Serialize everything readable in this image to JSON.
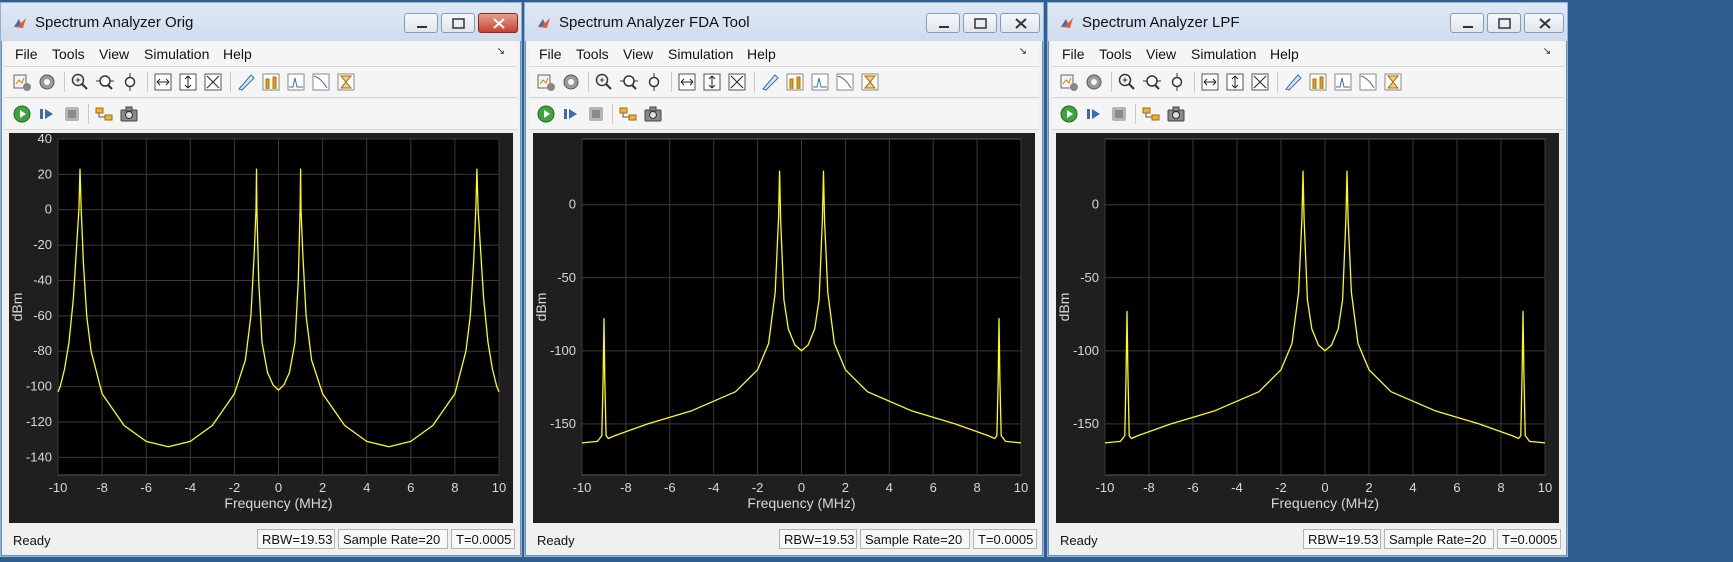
{
  "windows": [
    {
      "title": "Spectrum Analyzer Orig",
      "active": true,
      "menu": [
        "File",
        "Tools",
        "View",
        "Simulation",
        "Help"
      ],
      "status": {
        "state": "Ready",
        "rbw": "RBW=19.53",
        "sample_rate": "Sample Rate=20",
        "time": "T=0.0005"
      },
      "chart_data": {
        "type": "line",
        "xlabel": "Frequency (MHz)",
        "ylabel": "dBm",
        "xlim": [
          -10,
          10
        ],
        "ylim": [
          -150,
          40
        ],
        "xticks": [
          "-10",
          "-8",
          "-6",
          "-4",
          "-2",
          "0",
          "2",
          "4",
          "6",
          "8",
          "10"
        ],
        "yticks": [
          "40",
          "20",
          "0",
          "-20",
          "-40",
          "-60",
          "-80",
          "-100",
          "-120",
          "-140"
        ],
        "ytick_values": [
          40,
          20,
          0,
          -20,
          -40,
          -60,
          -80,
          -100,
          -120,
          -140
        ],
        "grid": true,
        "color": "#ffff00",
        "series": [
          {
            "x": [
              -10,
              -9.9,
              -9.7,
              -9.5,
              -9.3,
              -9.15,
              -9.05,
              -9.0,
              -8.95,
              -8.85,
              -8.7,
              -8.5,
              -8,
              -7,
              -6,
              -5,
              -4,
              -3,
              -2,
              -1.5,
              -1.25,
              -1.1,
              -1.02,
              -1.0,
              -0.98,
              -0.9,
              -0.75,
              -0.5,
              -0.25,
              0,
              0.25,
              0.5,
              0.75,
              0.9,
              0.98,
              1.0,
              1.02,
              1.1,
              1.25,
              1.5,
              2,
              3,
              4,
              5,
              6,
              7,
              8,
              8.5,
              8.7,
              8.85,
              8.95,
              9.0,
              9.05,
              9.15,
              9.3,
              9.5,
              9.7,
              9.9,
              10
            ],
            "y": [
              -103,
              -100,
              -90,
              -75,
              -50,
              -20,
              0,
              23,
              0,
              -30,
              -60,
              -80,
              -104,
              -122,
              -131,
              -134,
              -131,
              -122,
              -104,
              -85,
              -60,
              -25,
              0,
              23,
              0,
              -40,
              -75,
              -92,
              -99,
              -102,
              -99,
              -92,
              -75,
              -40,
              0,
              23,
              0,
              -25,
              -60,
              -85,
              -104,
              -122,
              -131,
              -134,
              -131,
              -122,
              -104,
              -80,
              -60,
              -30,
              0,
              23,
              0,
              -20,
              -50,
              -75,
              -90,
              -100,
              -103
            ]
          }
        ]
      }
    },
    {
      "title": "Spectrum Analyzer FDA Tool",
      "active": false,
      "menu": [
        "File",
        "Tools",
        "View",
        "Simulation",
        "Help"
      ],
      "status": {
        "state": "Ready",
        "rbw": "RBW=19.53",
        "sample_rate": "Sample Rate=20",
        "time": "T=0.0005"
      },
      "chart_data": {
        "type": "line",
        "xlabel": "Frequency (MHz)",
        "ylabel": "dBm",
        "xlim": [
          -10,
          10
        ],
        "ylim": [
          -185,
          45
        ],
        "xticks": [
          "-10",
          "-8",
          "-6",
          "-4",
          "-2",
          "0",
          "2",
          "4",
          "6",
          "8",
          "10"
        ],
        "yticks": [
          "0",
          "-50",
          "-100",
          "-150"
        ],
        "ytick_values": [
          0,
          -50,
          -100,
          -150
        ],
        "grid": true,
        "color": "#ffff00",
        "series": [
          {
            "x": [
              -10,
              -9.3,
              -9.1,
              -9.04,
              -9.0,
              -8.96,
              -8.9,
              -8.8,
              -8.5,
              -7,
              -5,
              -3,
              -2,
              -1.5,
              -1.2,
              -1.05,
              -1.0,
              -0.95,
              -0.8,
              -0.6,
              -0.3,
              0,
              0.3,
              0.6,
              0.8,
              0.95,
              1.0,
              1.05,
              1.2,
              1.5,
              2,
              3,
              5,
              7,
              8.5,
              8.8,
              8.9,
              8.96,
              9.0,
              9.04,
              9.1,
              9.3,
              10
            ],
            "y": [
              -163,
              -162,
              -158,
              -120,
              -78,
              -120,
              -158,
              -160,
              -158,
              -150,
              -141,
              -128,
              -113,
              -95,
              -60,
              -10,
              23,
              -10,
              -65,
              -85,
              -96,
              -100,
              -96,
              -85,
              -65,
              -10,
              23,
              -10,
              -60,
              -95,
              -113,
              -128,
              -141,
              -150,
              -158,
              -160,
              -158,
              -120,
              -78,
              -120,
              -158,
              -162,
              -163
            ]
          }
        ]
      }
    },
    {
      "title": "Spectrum Analyzer LPF",
      "active": false,
      "menu": [
        "File",
        "Tools",
        "View",
        "Simulation",
        "Help"
      ],
      "status": {
        "state": "Ready",
        "rbw": "RBW=19.53",
        "sample_rate": "Sample Rate=20",
        "time": "T=0.0005"
      },
      "chart_data": {
        "type": "line",
        "xlabel": "Frequency (MHz)",
        "ylabel": "dBm",
        "xlim": [
          -10,
          10
        ],
        "ylim": [
          -185,
          45
        ],
        "xticks": [
          "-10",
          "-8",
          "-6",
          "-4",
          "-2",
          "0",
          "2",
          "4",
          "6",
          "8",
          "10"
        ],
        "yticks": [
          "0",
          "-50",
          "-100",
          "-150"
        ],
        "ytick_values": [
          0,
          -50,
          -100,
          -150
        ],
        "grid": true,
        "color": "#ffff00",
        "series": [
          {
            "x": [
              -10,
              -9.3,
              -9.1,
              -9.04,
              -9.0,
              -8.96,
              -8.9,
              -8.8,
              -8.5,
              -7,
              -5,
              -3,
              -2,
              -1.5,
              -1.2,
              -1.05,
              -1.0,
              -0.95,
              -0.8,
              -0.6,
              -0.3,
              0,
              0.3,
              0.6,
              0.8,
              0.95,
              1.0,
              1.05,
              1.2,
              1.5,
              2,
              3,
              5,
              7,
              8.5,
              8.8,
              8.9,
              8.96,
              9.0,
              9.04,
              9.1,
              9.3,
              10
            ],
            "y": [
              -163,
              -162,
              -158,
              -115,
              -73,
              -115,
              -158,
              -160,
              -158,
              -150,
              -141,
              -128,
              -113,
              -95,
              -60,
              -10,
              23,
              -10,
              -65,
              -85,
              -96,
              -100,
              -96,
              -85,
              -65,
              -10,
              23,
              -10,
              -60,
              -95,
              -113,
              -128,
              -141,
              -150,
              -158,
              -160,
              -158,
              -115,
              -73,
              -115,
              -158,
              -162,
              -163
            ]
          }
        ]
      }
    }
  ],
  "toolbar_icons": {
    "row1": [
      "block-parameters-icon",
      "settings-icon",
      "zoom-in-icon",
      "zoom-x-icon",
      "zoom-y-icon",
      "scale-x-y-axes-icon",
      "scale-y-axis-icon",
      "scale-axes-limits-icon",
      "cursor-measurements-icon",
      "peak-finder-icon",
      "channel-measurements-icon",
      "distortion-measurements-icon",
      "ccdf-measurements-icon"
    ],
    "row2": [
      "run-icon",
      "step-forward-icon",
      "stop-icon",
      "highlight-block-icon",
      "snapshot-icon"
    ]
  },
  "colors": {
    "plot_bg": "#000000",
    "panel_bg": "#1f1f1f",
    "trace": "#ffff00",
    "grid": "#3a3a3a",
    "axis_text": "#d8d8d8"
  }
}
